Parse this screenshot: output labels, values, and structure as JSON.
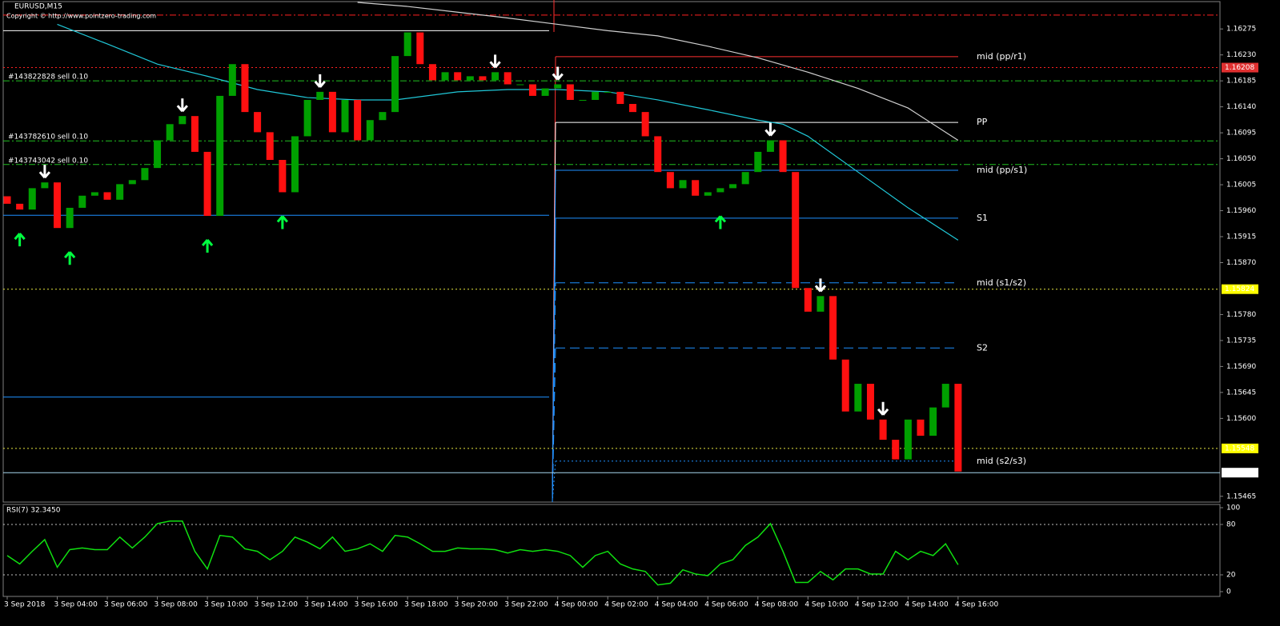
{
  "chart_data": [
    {
      "type": "candlestick",
      "title": "EURUSD,M15",
      "subtitle": "Copyright © http://www.pointzero-trading.com",
      "categories": [
        "3 Sep 2018",
        null,
        null,
        null,
        "3 Sep 04:00",
        null,
        null,
        null,
        "3 Sep 06:00",
        null,
        null,
        null,
        "3 Sep 08:00",
        null,
        null,
        null,
        "3 Sep 10:00",
        null,
        null,
        null,
        "3 Sep 12:00",
        null,
        null,
        null,
        "3 Sep 14:00",
        null,
        null,
        null,
        "3 Sep 16:00",
        null,
        null,
        null,
        "3 Sep 18:00",
        null,
        null,
        null,
        "3 Sep 20:00",
        null,
        null,
        null,
        "3 Sep 22:00",
        null,
        null,
        null,
        "4 Sep 00:00",
        null,
        null,
        null,
        "4 Sep 02:00",
        null,
        null,
        null,
        "4 Sep 04:00",
        null,
        null,
        null,
        "4 Sep 06:00",
        null,
        null,
        null,
        "4 Sep 08:00",
        null,
        null,
        null,
        "4 Sep 10:00",
        null,
        null,
        null,
        "4 Sep 12:00",
        null,
        null,
        null,
        "4 Sep 14:00",
        null,
        null,
        null,
        "4 Sep 16:00"
      ],
      "open": [
        1.15985,
        1.15972,
        1.15962,
        1.15999,
        1.16009,
        1.1593,
        1.15965,
        1.15986,
        1.15992,
        1.15979,
        1.16006,
        1.16013,
        1.16034,
        1.16082,
        1.1611,
        1.16124,
        1.16062,
        1.15951,
        1.16159,
        1.16214,
        1.16131,
        1.16096,
        1.16048,
        1.15992,
        1.16089,
        1.16152,
        1.16166,
        1.16096,
        1.16152,
        1.16082,
        1.16117,
        1.16131,
        1.16228,
        1.16269,
        1.16214,
        1.16186,
        1.162,
        1.16186,
        1.16193,
        1.16186,
        1.162,
        1.16179,
        1.16179,
        1.16159,
        1.16172,
        1.16179,
        1.16152,
        1.16152,
        1.16166,
        1.16166,
        1.16145,
        1.16131,
        1.16089,
        1.16027,
        1.15999,
        1.16013,
        1.15986,
        1.15992,
        1.15999,
        1.16006,
        1.16027,
        1.16062,
        1.16082,
        1.16027,
        1.15826,
        1.15785,
        1.15812,
        1.15702,
        1.15612,
        1.1566,
        1.15598,
        1.15563,
        1.15529,
        1.15598,
        1.1557,
        1.15619,
        1.1566
      ],
      "close": [
        1.15972,
        1.15962,
        1.15999,
        1.16009,
        1.1593,
        1.15965,
        1.15986,
        1.15992,
        1.15979,
        1.16006,
        1.16013,
        1.16034,
        1.16082,
        1.1611,
        1.16124,
        1.16062,
        1.15951,
        1.16159,
        1.16214,
        1.16131,
        1.16096,
        1.16048,
        1.15992,
        1.16089,
        1.16152,
        1.16166,
        1.16096,
        1.16152,
        1.16082,
        1.16117,
        1.16131,
        1.16228,
        1.16269,
        1.16214,
        1.16186,
        1.162,
        1.16186,
        1.16193,
        1.16186,
        1.162,
        1.16179,
        1.16179,
        1.16159,
        1.16172,
        1.16179,
        1.16152,
        1.16152,
        1.16166,
        1.16166,
        1.16145,
        1.16131,
        1.16089,
        1.16027,
        1.15999,
        1.16013,
        1.15986,
        1.15992,
        1.15999,
        1.16006,
        1.16027,
        1.16062,
        1.16082,
        1.16027,
        1.15826,
        1.15785,
        1.15812,
        1.15702,
        1.15612,
        1.1566,
        1.15598,
        1.15563,
        1.15529,
        1.15598,
        1.1557,
        1.15619,
        1.1566,
        1.15508
      ],
      "up_color": "#00a000",
      "down_color": "#ff1010",
      "ylim": [
        1.15455,
        1.16321
      ],
      "yticks": [
        1.16275,
        {
          "value": 1.1623,
          "label": "1.16230"
        },
        1.16185,
        {
          "value": 1.1614,
          "label": "1.16140"
        },
        1.16095,
        {
          "value": 1.1605,
          "label": "1.16050"
        },
        1.16005,
        {
          "value": 1.1596,
          "label": "1.15960"
        },
        1.15915,
        {
          "value": 1.1587,
          "label": "1.15870"
        },
        {
          "value": 1.1578,
          "label": "1.15780"
        },
        1.15735,
        {
          "value": 1.1569,
          "label": "1.15690"
        },
        1.15645,
        {
          "value": 1.156,
          "label": "1.15600"
        },
        1.15465
      ],
      "alert_lines": [
        {
          "value": 1.16299,
          "color": "#ff2020",
          "style": "dashdot"
        }
      ],
      "price_lines": [
        {
          "value": 1.16208,
          "color": "#ff2020",
          "box_color": "#e03030",
          "text_color": "#ffffff",
          "style": "dotted"
        },
        {
          "value": 1.15824,
          "color": "#e8e840",
          "box_color": "#ffff00",
          "text_color": "#000000",
          "style": "dotted"
        },
        {
          "value": 1.15548,
          "color": "#e8e840",
          "box_color": "#ffff00",
          "text_color": "#000000",
          "style": "dotted"
        },
        {
          "value": 1.15506,
          "color": "#a8d8f0",
          "box_color": "#ffffff",
          "text_color": "#000000",
          "style": "solid"
        }
      ],
      "orders": [
        {
          "label": "#143822828 sell 0.10",
          "value": 1.16185,
          "color": "#20c020"
        },
        {
          "label": "#143782610 sell 0.10",
          "value": 1.16081,
          "color": "#20c020"
        },
        {
          "label": "#143743042 sell 0.10",
          "value": 1.1604,
          "color": "#20c020"
        }
      ],
      "pivots": [
        {
          "label": "mid (pp/r1)",
          "value": 1.16227,
          "color": "#ff3030",
          "style": "solid"
        },
        {
          "label": "PP",
          "value": 1.16113,
          "color": "#ffffff",
          "style": "solid"
        },
        {
          "label": "mid (pp/s1)",
          "value": 1.1603,
          "color": "#1e90ff",
          "style": "solid"
        },
        {
          "label": "S1",
          "value": 1.15947,
          "color": "#1e90ff",
          "style": "solid"
        },
        {
          "label": "mid (s1/s2)",
          "value": 1.15835,
          "color": "#1e90ff",
          "style": "dashed"
        },
        {
          "label": "S2",
          "value": 1.15722,
          "color": "#1e90ff",
          "style": "dashed"
        },
        {
          "label": "mid (s2/s3)",
          "value": 1.15526,
          "color": "#1e90ff",
          "style": "dotted"
        }
      ],
      "previous_pivots": [
        {
          "value": 1.16272,
          "color": "#ffffff"
        },
        {
          "value": 1.15952,
          "color": "#1e90ff"
        },
        {
          "value": 1.15637,
          "color": "#1e90ff"
        }
      ],
      "moving_averages": [
        {
          "color": "#20c8d8",
          "x": [
            4,
            8,
            12,
            16,
            20,
            24,
            28,
            31,
            36,
            40,
            44,
            48,
            52,
            56,
            60,
            62,
            64,
            68,
            72,
            76
          ],
          "values": [
            1.16283,
            1.16249,
            1.16214,
            1.16193,
            1.1617,
            1.16156,
            1.16152,
            1.16152,
            1.16166,
            1.1617,
            1.1617,
            1.16166,
            1.16152,
            1.16135,
            1.16117,
            1.1611,
            1.16089,
            1.16027,
            1.15965,
            1.15909
          ]
        },
        {
          "color": "#d0d0d0",
          "x": [
            28,
            32,
            36,
            40,
            44,
            48,
            52,
            56,
            60,
            64,
            68,
            72,
            76
          ],
          "values": [
            1.16321,
            1.16314,
            1.16304,
            1.16294,
            1.16283,
            1.16272,
            1.16263,
            1.16245,
            1.16225,
            1.162,
            1.16172,
            1.16138,
            1.16082
          ]
        }
      ],
      "signals": {
        "sell": [
          3,
          14,
          25,
          39,
          44,
          61,
          65,
          70
        ],
        "buy": [
          1,
          5,
          16,
          22,
          57
        ],
        "sell_color": "#ffffff",
        "buy_color": "#00ff40"
      }
    },
    {
      "type": "line",
      "title": "RSI(7) 32.3450",
      "values": [
        43,
        33,
        48,
        62,
        29,
        50,
        52,
        50,
        50,
        65,
        52,
        65,
        81,
        84,
        84,
        48,
        27,
        67,
        65,
        51,
        48,
        38,
        48,
        65,
        59,
        51,
        65,
        48,
        51,
        57,
        48,
        67,
        65,
        57,
        48,
        48,
        52,
        51,
        51,
        50,
        46,
        50,
        48,
        50,
        48,
        43,
        29,
        43,
        48,
        33,
        27,
        24,
        8,
        10,
        26,
        21,
        19,
        33,
        38,
        55,
        65,
        81,
        48,
        11,
        11,
        24,
        14,
        27,
        27,
        21,
        21,
        48,
        38,
        48,
        43,
        57,
        32
      ],
      "color": "#10e010",
      "ylim": [
        0,
        100
      ],
      "yticks": [
        100,
        80,
        20,
        0
      ],
      "levels": [
        80,
        20
      ]
    }
  ]
}
